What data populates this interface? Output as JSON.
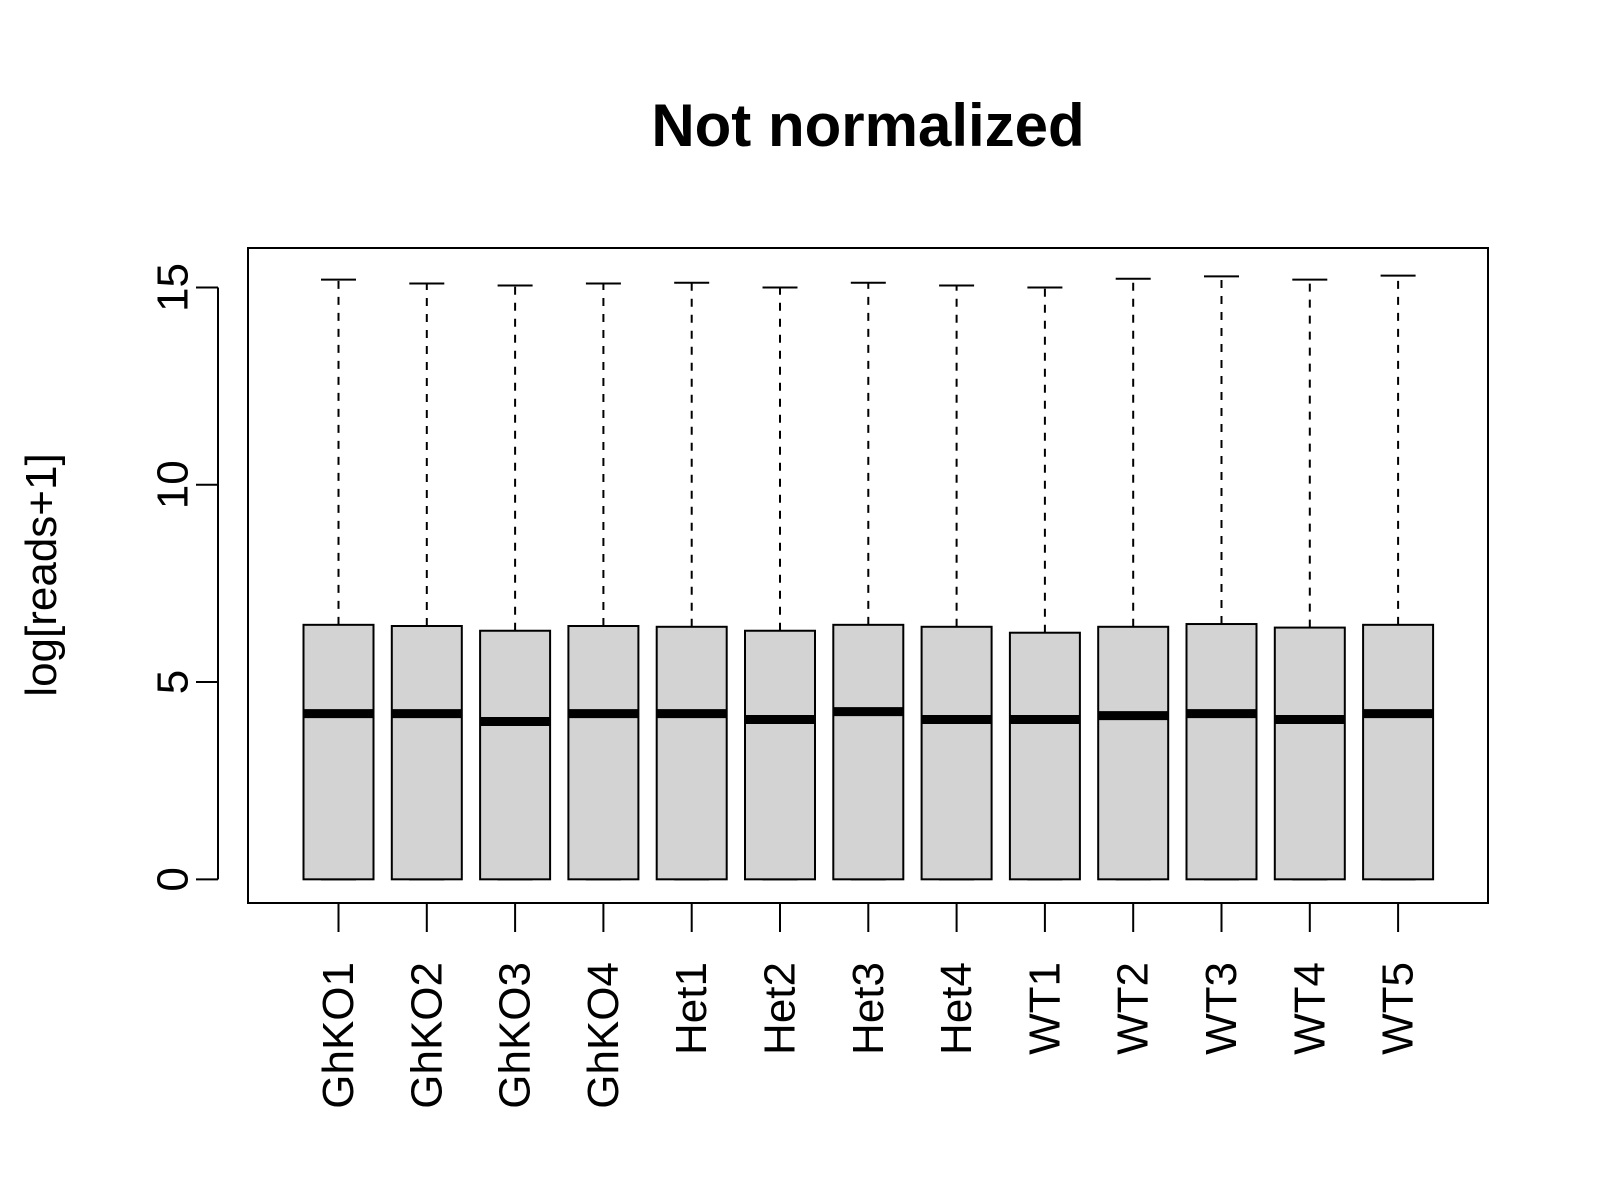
{
  "chart_data": {
    "type": "boxplot",
    "title": "Not normalized",
    "xlabel": "",
    "ylabel": "log[reads+1]",
    "ylim": [
      -0.6,
      16
    ],
    "yticks": [
      0,
      5,
      10,
      15
    ],
    "grid": false,
    "legend": "none",
    "box_fill": "#d3d3d3",
    "line_color": "#000000",
    "categories": [
      "GhKO1",
      "GhKO2",
      "GhKO3",
      "GhKO4",
      "Het1",
      "Het2",
      "Het3",
      "Het4",
      "WT1",
      "WT2",
      "WT3",
      "WT4",
      "WT5"
    ],
    "boxes": [
      {
        "min": 0,
        "q1": 0,
        "median": 4.2,
        "q3": 6.45,
        "max": 15.2
      },
      {
        "min": 0,
        "q1": 0,
        "median": 4.2,
        "q3": 6.42,
        "max": 15.1
      },
      {
        "min": 0,
        "q1": 0,
        "median": 4.0,
        "q3": 6.3,
        "max": 15.05
      },
      {
        "min": 0,
        "q1": 0,
        "median": 4.2,
        "q3": 6.42,
        "max": 15.1
      },
      {
        "min": 0,
        "q1": 0,
        "median": 4.2,
        "q3": 6.4,
        "max": 15.12
      },
      {
        "min": 0,
        "q1": 0,
        "median": 4.05,
        "q3": 6.3,
        "max": 15.0
      },
      {
        "min": 0,
        "q1": 0,
        "median": 4.25,
        "q3": 6.45,
        "max": 15.12
      },
      {
        "min": 0,
        "q1": 0,
        "median": 4.05,
        "q3": 6.4,
        "max": 15.05
      },
      {
        "min": 0,
        "q1": 0,
        "median": 4.05,
        "q3": 6.25,
        "max": 15.0
      },
      {
        "min": 0,
        "q1": 0,
        "median": 4.15,
        "q3": 6.4,
        "max": 15.22
      },
      {
        "min": 0,
        "q1": 0,
        "median": 4.2,
        "q3": 6.47,
        "max": 15.28
      },
      {
        "min": 0,
        "q1": 0,
        "median": 4.05,
        "q3": 6.38,
        "max": 15.2
      },
      {
        "min": 0,
        "q1": 0,
        "median": 4.2,
        "q3": 6.45,
        "max": 15.3
      }
    ]
  }
}
